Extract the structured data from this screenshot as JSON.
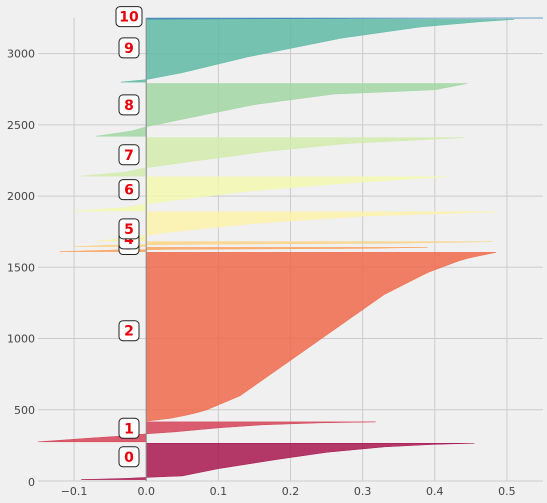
{
  "chart_data": {
    "type": "area",
    "title": "",
    "xlabel": "",
    "ylabel": "",
    "xlim": [
      -0.15,
      0.55
    ],
    "ylim": [
      0,
      3250
    ],
    "grid": true,
    "x_ticks": [
      -0.1,
      0.0,
      0.1,
      0.2,
      0.3,
      0.4,
      0.5
    ],
    "x_tick_labels": [
      "−0.1",
      "0.0",
      "0.1",
      "0.2",
      "0.3",
      "0.4",
      "0.5"
    ],
    "y_ticks": [
      0,
      500,
      1000,
      1500,
      2000,
      2500,
      3000
    ],
    "y_tick_labels": [
      "0",
      "500",
      "1000",
      "1500",
      "2000",
      "2500",
      "3000"
    ],
    "series": [
      {
        "label": "0",
        "color": "#a8164f",
        "y_start": 10,
        "y_end": 265,
        "label_y": 170,
        "profile": [
          [
            0,
            -0.09
          ],
          [
            0.03,
            -0.03
          ],
          [
            0.06,
            0.0
          ],
          [
            0.1,
            0.05
          ],
          [
            0.3,
            0.1
          ],
          [
            0.55,
            0.18
          ],
          [
            0.75,
            0.25
          ],
          [
            0.9,
            0.33
          ],
          [
            0.97,
            0.4
          ],
          [
            1,
            0.455
          ]
        ]
      },
      {
        "label": "1",
        "color": "#d54258",
        "y_start": 275,
        "y_end": 415,
        "label_y": 370,
        "profile": [
          [
            0,
            -0.15
          ],
          [
            0.18,
            -0.08
          ],
          [
            0.3,
            -0.03
          ],
          [
            0.4,
            0.0
          ],
          [
            0.5,
            0.04
          ],
          [
            0.7,
            0.1
          ],
          [
            0.85,
            0.16
          ],
          [
            0.95,
            0.24
          ],
          [
            1,
            0.318
          ]
        ]
      },
      {
        "label": "2",
        "color": "#ee6a4b",
        "y_start": 420,
        "y_end": 1605,
        "label_y": 1055,
        "profile": [
          [
            0,
            0.0
          ],
          [
            0.02,
            0.04
          ],
          [
            0.06,
            0.08
          ],
          [
            0.15,
            0.13
          ],
          [
            0.3,
            0.18
          ],
          [
            0.45,
            0.23
          ],
          [
            0.6,
            0.28
          ],
          [
            0.75,
            0.33
          ],
          [
            0.88,
            0.39
          ],
          [
            0.96,
            0.44
          ],
          [
            1,
            0.485
          ]
        ]
      },
      {
        "label": "3",
        "color": "#f9a35f",
        "y_start": 1610,
        "y_end": 1640,
        "label_y": 1660,
        "profile": [
          [
            0,
            -0.12
          ],
          [
            0.4,
            -0.04
          ],
          [
            0.55,
            0.05
          ],
          [
            0.75,
            0.3
          ],
          [
            1,
            0.39
          ]
        ]
      },
      {
        "label": "4",
        "color": "#fcd384",
        "y_start": 1645,
        "y_end": 1680,
        "label_y": 1700,
        "profile": [
          [
            0,
            -0.1
          ],
          [
            0.3,
            -0.05
          ],
          [
            0.5,
            0.1
          ],
          [
            0.7,
            0.35
          ],
          [
            1,
            0.48
          ]
        ]
      },
      {
        "label": "5",
        "color": "#fdf2ab",
        "y_start": 1685,
        "y_end": 1890,
        "label_y": 1770,
        "profile": [
          [
            0,
            -0.07
          ],
          [
            0.1,
            -0.02
          ],
          [
            0.2,
            0.0
          ],
          [
            0.35,
            0.05
          ],
          [
            0.6,
            0.15
          ],
          [
            0.85,
            0.3
          ],
          [
            1,
            0.49
          ]
        ]
      },
      {
        "label": "6",
        "color": "#f3f9b0",
        "y_start": 1895,
        "y_end": 2135,
        "label_y": 2045,
        "profile": [
          [
            0,
            -0.1
          ],
          [
            0.1,
            -0.03
          ],
          [
            0.2,
            0.0
          ],
          [
            0.35,
            0.05
          ],
          [
            0.6,
            0.15
          ],
          [
            0.85,
            0.3
          ],
          [
            1,
            0.415
          ]
        ]
      },
      {
        "label": "7",
        "color": "#d2ebab",
        "y_start": 2140,
        "y_end": 2410,
        "label_y": 2290,
        "profile": [
          [
            0,
            -0.09
          ],
          [
            0.1,
            -0.03
          ],
          [
            0.22,
            0.0
          ],
          [
            0.4,
            0.07
          ],
          [
            0.65,
            0.17
          ],
          [
            0.85,
            0.28
          ],
          [
            1,
            0.44
          ]
        ]
      },
      {
        "label": "8",
        "color": "#a1d6a3",
        "y_start": 2420,
        "y_end": 2790,
        "label_y": 2640,
        "profile": [
          [
            0,
            -0.07
          ],
          [
            0.1,
            -0.02
          ],
          [
            0.18,
            0.0
          ],
          [
            0.35,
            0.06
          ],
          [
            0.6,
            0.15
          ],
          [
            0.8,
            0.26
          ],
          [
            0.88,
            0.4
          ],
          [
            1,
            0.445
          ]
        ]
      },
      {
        "label": "9",
        "color": "#5fbaa6",
        "y_start": 2800,
        "y_end": 3240,
        "label_y": 3040,
        "profile": [
          [
            0,
            -0.035
          ],
          [
            0.04,
            0.0
          ],
          [
            0.15,
            0.05
          ],
          [
            0.4,
            0.14
          ],
          [
            0.7,
            0.27
          ],
          [
            0.88,
            0.38
          ],
          [
            0.97,
            0.47
          ],
          [
            1,
            0.51
          ]
        ]
      },
      {
        "label": "10",
        "color": "#3c82b6",
        "y_start": 3242,
        "y_end": 3250,
        "label_y": 3260,
        "profile": [
          [
            0,
            0.0
          ],
          [
            1,
            0.55
          ]
        ]
      }
    ]
  }
}
